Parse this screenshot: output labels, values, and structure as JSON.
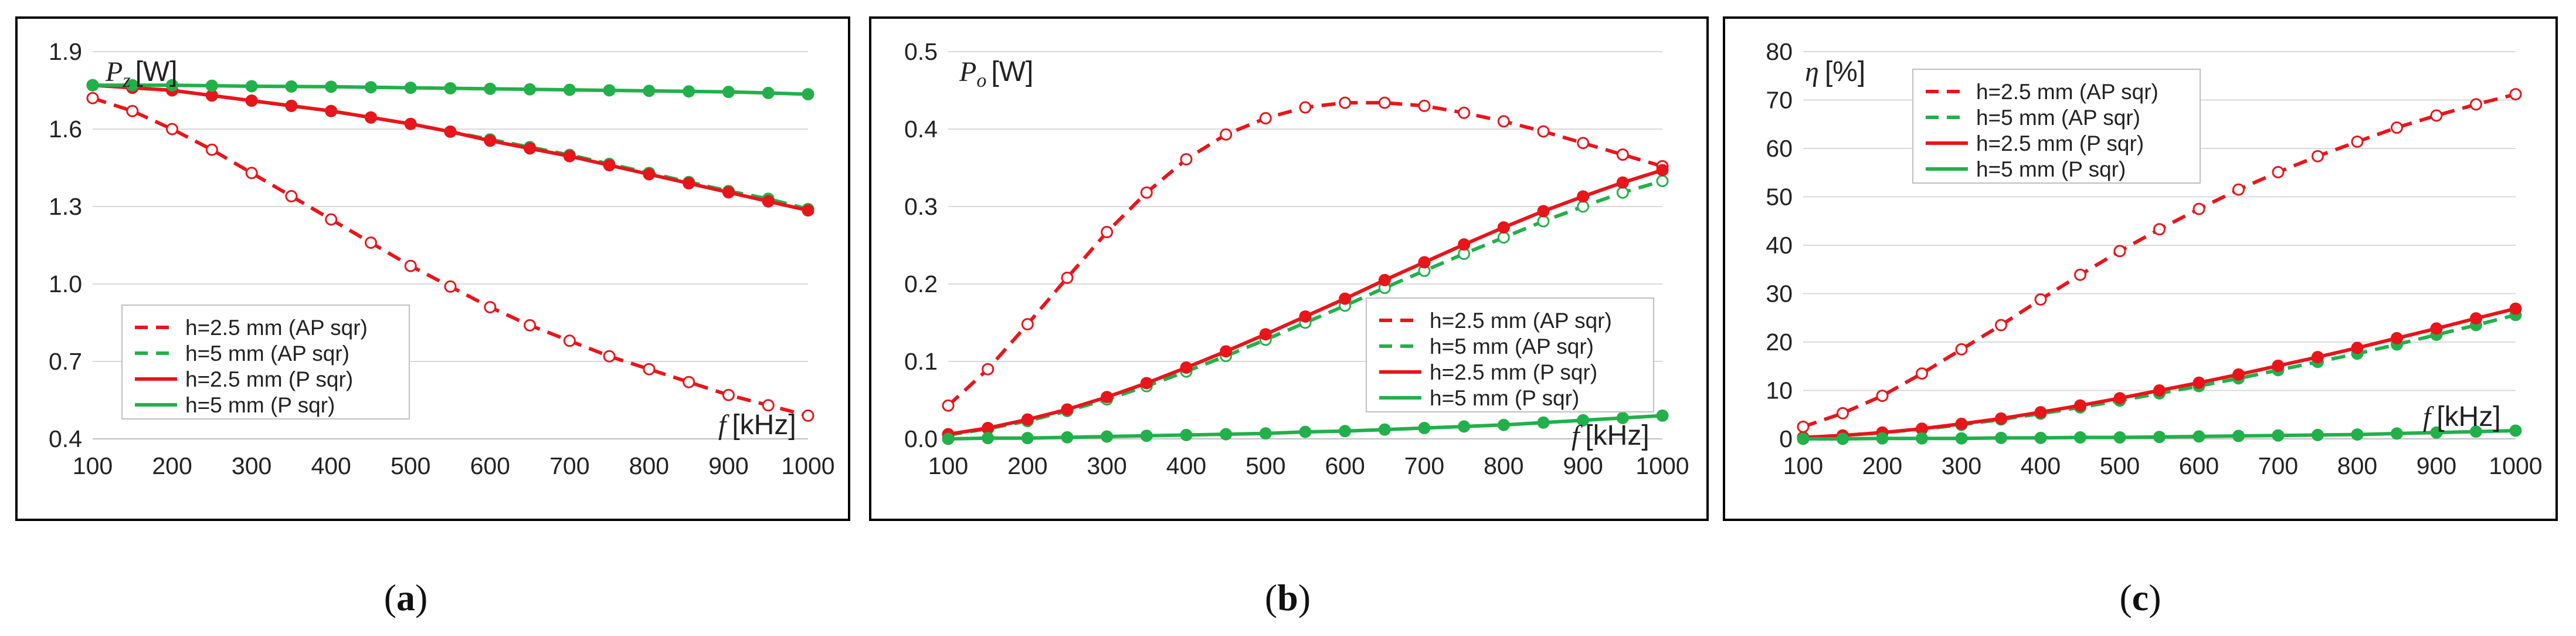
{
  "colors": {
    "red": "#e8151b",
    "green": "#22b04b",
    "grid": "#d9d9d9",
    "frame": "#000000"
  },
  "chart_data": [
    {
      "type": "line",
      "panel_label": "a",
      "ylabel_symbol": "P",
      "ylabel_subscript": "z",
      "ylabel_unit": "[W]",
      "xlabel_symbol": "f",
      "xlabel_unit": "[kHz]",
      "xlim": [
        100,
        1000
      ],
      "ylim": [
        0.4,
        1.9
      ],
      "x_ticks": [
        100,
        200,
        300,
        400,
        500,
        600,
        700,
        800,
        900,
        1000
      ],
      "y_ticks": [
        "0.4",
        "0.7",
        "1.0",
        "1.3",
        "1.6",
        "1.9"
      ],
      "legend_position": "bottom-left",
      "x": [
        100,
        150,
        200,
        250,
        300,
        350,
        400,
        450,
        500,
        550,
        600,
        650,
        700,
        750,
        800,
        850,
        900,
        950,
        1000
      ],
      "series": [
        {
          "name": "h=2.5 mm (AP sqr)",
          "color": "red",
          "dash": true,
          "marker": "open",
          "values": [
            1.72,
            1.67,
            1.6,
            1.52,
            1.43,
            1.34,
            1.25,
            1.16,
            1.07,
            0.99,
            0.91,
            0.84,
            0.78,
            0.72,
            0.67,
            0.62,
            0.57,
            0.53,
            0.49
          ]
        },
        {
          "name": "h=5 mm (AP sqr)",
          "color": "green",
          "dash": true,
          "marker": "filled",
          "values": [
            1.77,
            1.76,
            1.75,
            1.73,
            1.71,
            1.69,
            1.67,
            1.645,
            1.62,
            1.59,
            1.56,
            1.53,
            1.5,
            1.465,
            1.43,
            1.395,
            1.36,
            1.33,
            1.29
          ]
        },
        {
          "name": "h=2.5 mm (P sqr)",
          "color": "red",
          "dash": false,
          "marker": "filled",
          "values": [
            1.77,
            1.76,
            1.75,
            1.73,
            1.71,
            1.69,
            1.67,
            1.645,
            1.62,
            1.59,
            1.555,
            1.525,
            1.495,
            1.46,
            1.425,
            1.39,
            1.355,
            1.32,
            1.285
          ]
        },
        {
          "name": "h=5 mm (P sqr)",
          "color": "green",
          "dash": false,
          "marker": "filled",
          "values": [
            1.77,
            1.77,
            1.77,
            1.768,
            1.766,
            1.765,
            1.764,
            1.762,
            1.76,
            1.758,
            1.756,
            1.754,
            1.752,
            1.75,
            1.748,
            1.746,
            1.744,
            1.74,
            1.735
          ]
        }
      ]
    },
    {
      "type": "line",
      "panel_label": "b",
      "ylabel_symbol": "P",
      "ylabel_subscript": "o",
      "ylabel_unit": "[W]",
      "xlabel_symbol": "f",
      "xlabel_unit": "[kHz]",
      "xlim": [
        100,
        1000
      ],
      "ylim": [
        0,
        0.5
      ],
      "x_ticks": [
        100,
        200,
        300,
        400,
        500,
        600,
        700,
        800,
        900,
        1000
      ],
      "y_ticks": [
        "0.0",
        "0.1",
        "0.2",
        "0.3",
        "0.4",
        "0.5"
      ],
      "legend_position": "bottom-right",
      "x": [
        100,
        150,
        200,
        250,
        300,
        350,
        400,
        450,
        500,
        550,
        600,
        650,
        700,
        750,
        800,
        850,
        900,
        950,
        1000
      ],
      "series": [
        {
          "name": "h=2.5 mm (AP sqr)",
          "color": "red",
          "dash": true,
          "marker": "open",
          "values": [
            0.043,
            0.09,
            0.148,
            0.208,
            0.267,
            0.318,
            0.361,
            0.393,
            0.414,
            0.428,
            0.434,
            0.434,
            0.43,
            0.421,
            0.41,
            0.397,
            0.382,
            0.367,
            0.352
          ]
        },
        {
          "name": "h=5 mm (AP sqr)",
          "color": "green",
          "dash": true,
          "marker": "open",
          "values": [
            0.005,
            0.013,
            0.023,
            0.036,
            0.051,
            0.068,
            0.087,
            0.107,
            0.128,
            0.15,
            0.172,
            0.195,
            0.217,
            0.239,
            0.26,
            0.281,
            0.3,
            0.318,
            0.333
          ]
        },
        {
          "name": "h=2.5 mm (P sqr)",
          "color": "red",
          "dash": false,
          "marker": "filled",
          "values": [
            0.006,
            0.014,
            0.025,
            0.038,
            0.054,
            0.072,
            0.092,
            0.113,
            0.135,
            0.158,
            0.181,
            0.205,
            0.228,
            0.251,
            0.273,
            0.294,
            0.313,
            0.331,
            0.347
          ]
        },
        {
          "name": "h=5 mm (P sqr)",
          "color": "green",
          "dash": false,
          "marker": "filled",
          "values": [
            0.0,
            0.001,
            0.001,
            0.002,
            0.003,
            0.004,
            0.005,
            0.006,
            0.007,
            0.009,
            0.01,
            0.012,
            0.014,
            0.016,
            0.018,
            0.021,
            0.024,
            0.027,
            0.03
          ]
        }
      ]
    },
    {
      "type": "line",
      "panel_label": "c",
      "ylabel_symbol": "η",
      "ylabel_subscript": "",
      "ylabel_unit": "[%]",
      "xlabel_symbol": "f",
      "xlabel_unit": "[kHz]",
      "xlim": [
        100,
        1000
      ],
      "ylim": [
        0,
        80
      ],
      "x_ticks": [
        100,
        200,
        300,
        400,
        500,
        600,
        700,
        800,
        900,
        1000
      ],
      "y_ticks": [
        "0",
        "10",
        "20",
        "30",
        "40",
        "50",
        "60",
        "70",
        "80"
      ],
      "legend_position": "top-left",
      "x": [
        100,
        150,
        200,
        250,
        300,
        350,
        400,
        450,
        500,
        550,
        600,
        650,
        700,
        750,
        800,
        850,
        900,
        950,
        1000
      ],
      "series": [
        {
          "name": "h=2.5 mm (AP sqr)",
          "color": "red",
          "dash": true,
          "marker": "open",
          "values": [
            2.5,
            5.3,
            8.9,
            13.5,
            18.5,
            23.5,
            28.8,
            33.9,
            38.8,
            43.3,
            47.5,
            51.5,
            55.1,
            58.4,
            61.4,
            64.3,
            66.8,
            69.1,
            71.2
          ]
        },
        {
          "name": "h=5 mm (AP sqr)",
          "color": "green",
          "dash": true,
          "marker": "filled",
          "values": [
            0.3,
            0.7,
            1.3,
            2.0,
            2.9,
            4.0,
            5.2,
            6.5,
            7.9,
            9.4,
            10.9,
            12.5,
            14.2,
            15.9,
            17.6,
            19.5,
            21.5,
            23.5,
            25.6
          ]
        },
        {
          "name": "h=2.5 mm (P sqr)",
          "color": "red",
          "dash": false,
          "marker": "filled",
          "values": [
            0.3,
            0.7,
            1.3,
            2.1,
            3.1,
            4.2,
            5.5,
            6.9,
            8.4,
            10.0,
            11.6,
            13.3,
            15.1,
            16.9,
            18.8,
            20.8,
            22.8,
            24.9,
            26.9
          ]
        },
        {
          "name": "h=5 mm (P sqr)",
          "color": "green",
          "dash": false,
          "marker": "filled",
          "values": [
            0.0,
            0.0,
            0.1,
            0.1,
            0.1,
            0.2,
            0.2,
            0.3,
            0.3,
            0.4,
            0.5,
            0.6,
            0.7,
            0.8,
            0.9,
            1.1,
            1.3,
            1.5,
            1.7
          ]
        }
      ]
    }
  ]
}
